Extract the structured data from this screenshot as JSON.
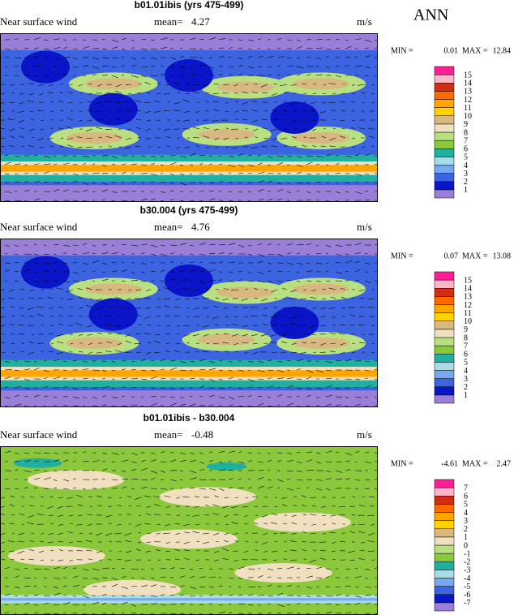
{
  "season": "ANN",
  "panels": [
    {
      "title": "b01.01ibis (yrs 475-499)",
      "variable": "Near surface wind",
      "mean_label": "mean=",
      "mean": 4.27,
      "units": "m/s",
      "min_label": "MIN =",
      "min": 0.01,
      "max_label": "MAX =",
      "max": 12.84,
      "levels": [
        1,
        2,
        3,
        4,
        5,
        6,
        7,
        8,
        9,
        10,
        11,
        12,
        13,
        14,
        15
      ],
      "colors": [
        "#9a7fd8",
        "#0a14c8",
        "#3c64e0",
        "#78a8f0",
        "#a8dce8",
        "#20b0a0",
        "#8cc83c",
        "#b8e080",
        "#f0e0c0",
        "#d8b880",
        "#ffd200",
        "#ffa500",
        "#ff6a00",
        "#d22d14",
        "#ffb4c8",
        "#ff1e96"
      ]
    },
    {
      "title": "b30.004 (yrs 475-499)",
      "variable": "Near surface wind",
      "mean_label": "mean=",
      "mean": 4.76,
      "units": "m/s",
      "min_label": "MIN =",
      "min": 0.07,
      "max_label": "MAX =",
      "max": 13.08,
      "levels": [
        1,
        2,
        3,
        4,
        5,
        6,
        7,
        8,
        9,
        10,
        11,
        12,
        13,
        14,
        15
      ],
      "colors": [
        "#9a7fd8",
        "#0a14c8",
        "#3c64e0",
        "#78a8f0",
        "#a8dce8",
        "#20b0a0",
        "#8cc83c",
        "#b8e080",
        "#f0e0c0",
        "#d8b880",
        "#ffd200",
        "#ffa500",
        "#ff6a00",
        "#d22d14",
        "#ffb4c8",
        "#ff1e96"
      ]
    },
    {
      "title": "b01.01ibis - b30.004",
      "variable": "Near surface wind",
      "mean_label": "mean=",
      "mean": -0.48,
      "units": "m/s",
      "min_label": "MIN =",
      "min": -4.61,
      "max_label": "MAX =",
      "max": 2.47,
      "levels": [
        -7,
        -6,
        -5,
        -4,
        -3,
        -2,
        -1,
        0,
        1,
        2,
        3,
        4,
        5,
        6,
        7
      ],
      "colors": [
        "#9a7fd8",
        "#0a14c8",
        "#3c64e0",
        "#78a8f0",
        "#a8dce8",
        "#20b0a0",
        "#8cc83c",
        "#b8e080",
        "#f0e0c0",
        "#d8b880",
        "#ffd200",
        "#ffa500",
        "#ff6a00",
        "#d22d14",
        "#ffb4c8",
        "#ff1e96"
      ]
    }
  ]
}
